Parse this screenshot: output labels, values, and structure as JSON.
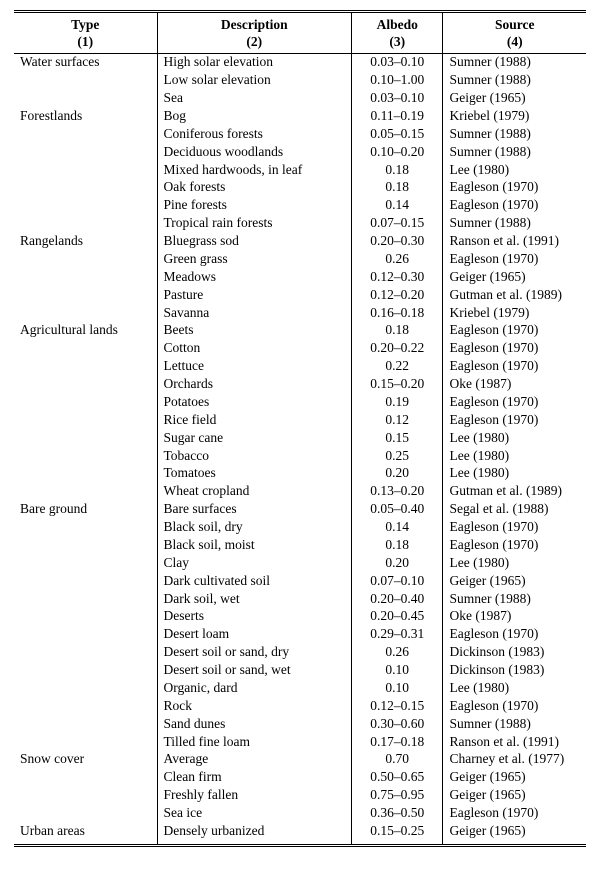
{
  "table": {
    "columns": [
      {
        "label": "Type",
        "sublabel": "(1)"
      },
      {
        "label": "Description",
        "sublabel": "(2)"
      },
      {
        "label": "Albedo",
        "sublabel": "(3)"
      },
      {
        "label": "Source",
        "sublabel": "(4)"
      }
    ],
    "col_widths_pct": [
      25,
      34,
      16,
      25
    ],
    "font_family": "Times New Roman",
    "font_size_pt": 10,
    "rule_style": {
      "top": "double 3px #000",
      "header_bottom": "solid 1px #000",
      "bottom": "double 3px #000",
      "col_sep": "solid 1px #000"
    },
    "background_color": "#ffffff",
    "text_color": "#000000",
    "groups": [
      {
        "type": "Water surfaces",
        "rows": [
          {
            "description": "High solar elevation",
            "albedo": "0.03–0.10",
            "source": "Sumner (1988)"
          },
          {
            "description": "Low solar elevation",
            "albedo": "0.10–1.00",
            "source": "Sumner (1988)"
          },
          {
            "description": "Sea",
            "albedo": "0.03–0.10",
            "source": "Geiger (1965)"
          }
        ]
      },
      {
        "type": "Forestlands",
        "rows": [
          {
            "description": "Bog",
            "albedo": "0.11–0.19",
            "source": "Kriebel (1979)"
          },
          {
            "description": "Coniferous forests",
            "albedo": "0.05–0.15",
            "source": "Sumner (1988)"
          },
          {
            "description": "Deciduous woodlands",
            "albedo": "0.10–0.20",
            "source": "Sumner (1988)"
          },
          {
            "description": "Mixed hardwoods, in leaf",
            "albedo": "0.18",
            "source": "Lee (1980)"
          },
          {
            "description": "Oak forests",
            "albedo": "0.18",
            "source": "Eagleson (1970)"
          },
          {
            "description": "Pine forests",
            "albedo": "0.14",
            "source": "Eagleson (1970)"
          },
          {
            "description": "Tropical rain forests",
            "albedo": "0.07–0.15",
            "source": "Sumner (1988)"
          }
        ]
      },
      {
        "type": "Rangelands",
        "rows": [
          {
            "description": "Bluegrass sod",
            "albedo": "0.20–0.30",
            "source": "Ranson et al. (1991)"
          },
          {
            "description": "Green grass",
            "albedo": "0.26",
            "source": "Eagleson (1970)"
          },
          {
            "description": "Meadows",
            "albedo": "0.12–0.30",
            "source": "Geiger (1965)"
          },
          {
            "description": "Pasture",
            "albedo": "0.12–0.20",
            "source": "Gutman et al. (1989)"
          },
          {
            "description": "Savanna",
            "albedo": "0.16–0.18",
            "source": "Kriebel (1979)"
          }
        ]
      },
      {
        "type": "Agricultural lands",
        "rows": [
          {
            "description": "Beets",
            "albedo": "0.18",
            "source": "Eagleson (1970)"
          },
          {
            "description": "Cotton",
            "albedo": "0.20–0.22",
            "source": "Eagleson (1970)"
          },
          {
            "description": "Lettuce",
            "albedo": "0.22",
            "source": "Eagleson (1970)"
          },
          {
            "description": "Orchards",
            "albedo": "0.15–0.20",
            "source": "Oke (1987)"
          },
          {
            "description": "Potatoes",
            "albedo": "0.19",
            "source": "Eagleson (1970)"
          },
          {
            "description": "Rice field",
            "albedo": "0.12",
            "source": "Eagleson (1970)"
          },
          {
            "description": "Sugar cane",
            "albedo": "0.15",
            "source": "Lee (1980)"
          },
          {
            "description": "Tobacco",
            "albedo": "0.25",
            "source": "Lee (1980)"
          },
          {
            "description": "Tomatoes",
            "albedo": "0.20",
            "source": "Lee (1980)"
          },
          {
            "description": "Wheat cropland",
            "albedo": "0.13–0.20",
            "source": "Gutman et al. (1989)"
          }
        ]
      },
      {
        "type": "Bare ground",
        "rows": [
          {
            "description": "Bare surfaces",
            "albedo": "0.05–0.40",
            "source": "Segal et al. (1988)"
          },
          {
            "description": "Black soil, dry",
            "albedo": "0.14",
            "source": "Eagleson (1970)"
          },
          {
            "description": "Black soil, moist",
            "albedo": "0.18",
            "source": "Eagleson (1970)"
          },
          {
            "description": "Clay",
            "albedo": "0.20",
            "source": "Lee (1980)"
          },
          {
            "description": "Dark cultivated soil",
            "albedo": "0.07–0.10",
            "source": "Geiger (1965)"
          },
          {
            "description": "Dark soil, wet",
            "albedo": "0.20–0.40",
            "source": "Sumner (1988)"
          },
          {
            "description": "Deserts",
            "albedo": "0.20–0.45",
            "source": "Oke (1987)"
          },
          {
            "description": "Desert loam",
            "albedo": "0.29–0.31",
            "source": "Eagleson (1970)"
          },
          {
            "description": "Desert soil or sand, dry",
            "albedo": "0.26",
            "source": "Dickinson (1983)"
          },
          {
            "description": "Desert soil or sand, wet",
            "albedo": "0.10",
            "source": "Dickinson (1983)"
          },
          {
            "description": "Organic, dard",
            "albedo": "0.10",
            "source": "Lee (1980)"
          },
          {
            "description": "Rock",
            "albedo": "0.12–0.15",
            "source": "Eagleson (1970)"
          },
          {
            "description": "Sand dunes",
            "albedo": "0.30–0.60",
            "source": "Sumner (1988)"
          },
          {
            "description": "Tilled fine loam",
            "albedo": "0.17–0.18",
            "source": "Ranson et al. (1991)"
          }
        ]
      },
      {
        "type": "Snow cover",
        "rows": [
          {
            "description": "Average",
            "albedo": "0.70",
            "source": "Charney et al. (1977)"
          },
          {
            "description": "Clean firm",
            "albedo": "0.50–0.65",
            "source": "Geiger (1965)"
          },
          {
            "description": "Freshly fallen",
            "albedo": "0.75–0.95",
            "source": "Geiger (1965)"
          },
          {
            "description": "Sea ice",
            "albedo": "0.36–0.50",
            "source": "Eagleson (1970)"
          }
        ]
      },
      {
        "type": "Urban areas",
        "rows": [
          {
            "description": "Densely urbanized",
            "albedo": "0.15–0.25",
            "source": "Geiger (1965)"
          }
        ]
      }
    ]
  }
}
